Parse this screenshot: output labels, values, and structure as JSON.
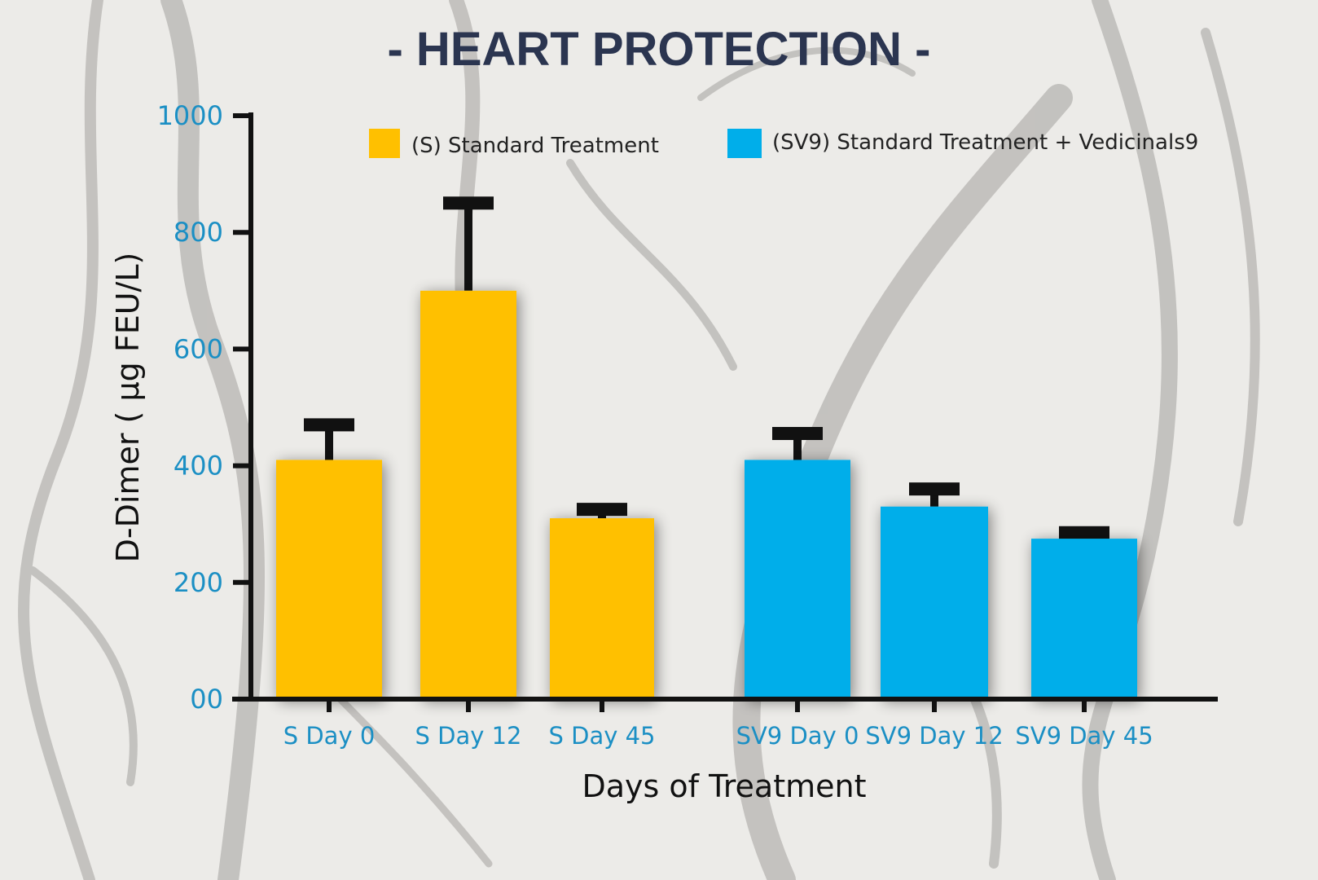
{
  "chart_data": {
    "type": "bar",
    "title": "- HEART PROTECTION -",
    "xlabel": "Days of Treatment",
    "ylabel": "D-Dimer ( µg FEU/L)",
    "ylim": [
      0,
      1000
    ],
    "yticks": [
      0,
      200,
      400,
      600,
      800,
      1000
    ],
    "ytick_labels": [
      "00",
      "200",
      "400",
      "600",
      "800",
      "1000"
    ],
    "legend_position": "top",
    "series": [
      {
        "name": "(S) Standard Treatment",
        "color": "#FFC000",
        "categories": [
          "S Day 0",
          "S Day 12",
          "S Day 45"
        ],
        "values": [
          410,
          700,
          310
        ],
        "errors": [
          70,
          160,
          25
        ]
      },
      {
        "name": "(SV9) Standard Treatment + Vedicinals9",
        "color": "#00AEEA",
        "categories": [
          "SV9 Day 0",
          "SV9 Day 12",
          "SV9 Day 45"
        ],
        "values": [
          410,
          330,
          275
        ],
        "errors": [
          55,
          40,
          20
        ]
      }
    ],
    "colors": {
      "axis": "#111111",
      "tick_text": "#1b8fc4",
      "title": "#2b3550"
    }
  }
}
